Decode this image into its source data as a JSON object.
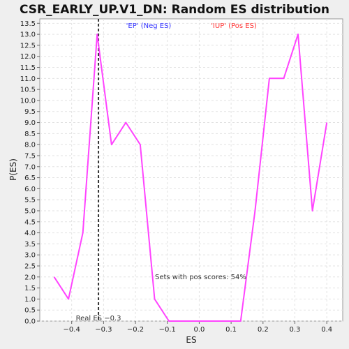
{
  "chart_data": {
    "type": "line",
    "title": "CSR_EARLY_UP.V1_DN: Random ES distribution",
    "xlabel": "ES",
    "ylabel": "P(ES)",
    "xlim": [
      -0.5,
      0.45
    ],
    "ylim": [
      0,
      13.7
    ],
    "grid": true,
    "x_ticks": [
      -0.4,
      -0.3,
      -0.2,
      -0.1,
      0.0,
      0.1,
      0.2,
      0.3,
      0.4
    ],
    "x_tick_labels": [
      "−0.4",
      "−0.3",
      "−0.2",
      "−0.1",
      "0.0",
      "0.1",
      "0.2",
      "0.3",
      "0.4"
    ],
    "y_ticks": [
      0.0,
      0.5,
      1.0,
      1.5,
      2.0,
      2.5,
      3.0,
      3.5,
      4.0,
      4.5,
      5.0,
      5.5,
      6.0,
      6.5,
      7.0,
      7.5,
      8.0,
      8.5,
      9.0,
      9.5,
      10.0,
      10.5,
      11.0,
      11.5,
      12.0,
      12.5,
      13.0,
      13.5
    ],
    "y_tick_labels": [
      "0.0",
      "0.5",
      "1.0",
      "1.5",
      "2.0",
      "2.5",
      "3.0",
      "3.5",
      "4.0",
      "4.5",
      "5.0",
      "5.5",
      "6.0",
      "6.5",
      "7.0",
      "7.5",
      "8.0",
      "8.5",
      "9.0",
      "9.5",
      "10.0",
      "10.5",
      "11.0",
      "11.5",
      "12.0",
      "12.5",
      "13.0",
      "13.5"
    ],
    "series": [
      {
        "color": "#ff44ff",
        "x": [
          -0.455,
          -0.41,
          -0.365,
          -0.32,
          -0.275,
          -0.23,
          -0.185,
          -0.14,
          -0.095,
          -0.05,
          -0.005,
          0.04,
          0.085,
          0.13,
          0.175,
          0.22,
          0.265,
          0.31,
          0.355,
          0.4
        ],
        "y": [
          2,
          1,
          4,
          13,
          8,
          9,
          8,
          1,
          0,
          0,
          0,
          0,
          0,
          0,
          5,
          11,
          11,
          13,
          5,
          9
        ]
      }
    ],
    "real_es": {
      "x": -0.316,
      "label": "Real ES −0.3",
      "color": "#333333"
    },
    "legend": [
      {
        "label": "'EP' (Neg ES)",
        "color": "#3333ff"
      },
      {
        "label": "'IUP' (Pos ES)",
        "color": "#ff3333"
      }
    ],
    "annotation": "Sets with pos scores: 54%"
  }
}
